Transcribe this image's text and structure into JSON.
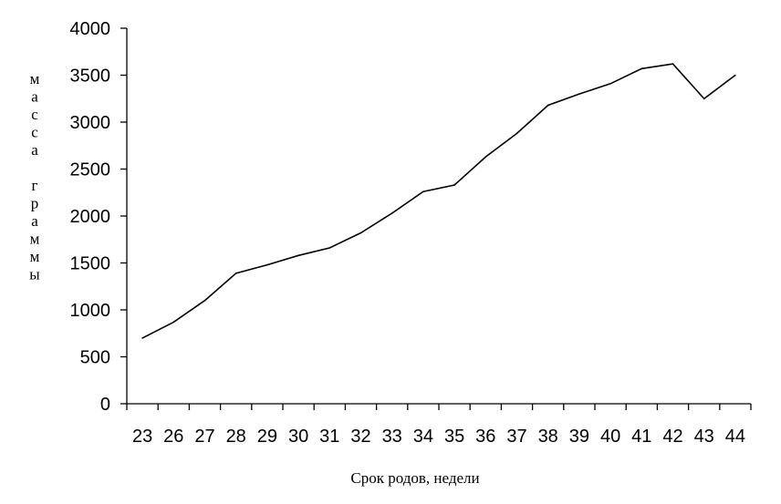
{
  "chart_data": {
    "type": "line",
    "x": [
      "23",
      "26",
      "27",
      "28",
      "29",
      "30",
      "31",
      "32",
      "33",
      "34",
      "35",
      "36",
      "37",
      "38",
      "39",
      "40",
      "41",
      "42",
      "43",
      "44"
    ],
    "values": [
      700,
      870,
      1100,
      1390,
      1480,
      1580,
      1660,
      1820,
      2030,
      2260,
      2330,
      2630,
      2880,
      3180,
      3300,
      3410,
      3570,
      3620,
      3250,
      3500
    ],
    "xlabel": "Срок родов, недели",
    "ylabel": "масса граммы",
    "ylabel_chars": [
      "м",
      "а",
      "с",
      "с",
      "а",
      "",
      "г",
      "р",
      "а",
      "м",
      "м",
      "ы"
    ],
    "ylim": [
      0,
      4000
    ],
    "yticks": [
      0,
      500,
      1000,
      1500,
      2000,
      2500,
      3000,
      3500,
      4000
    ],
    "grid": false
  }
}
